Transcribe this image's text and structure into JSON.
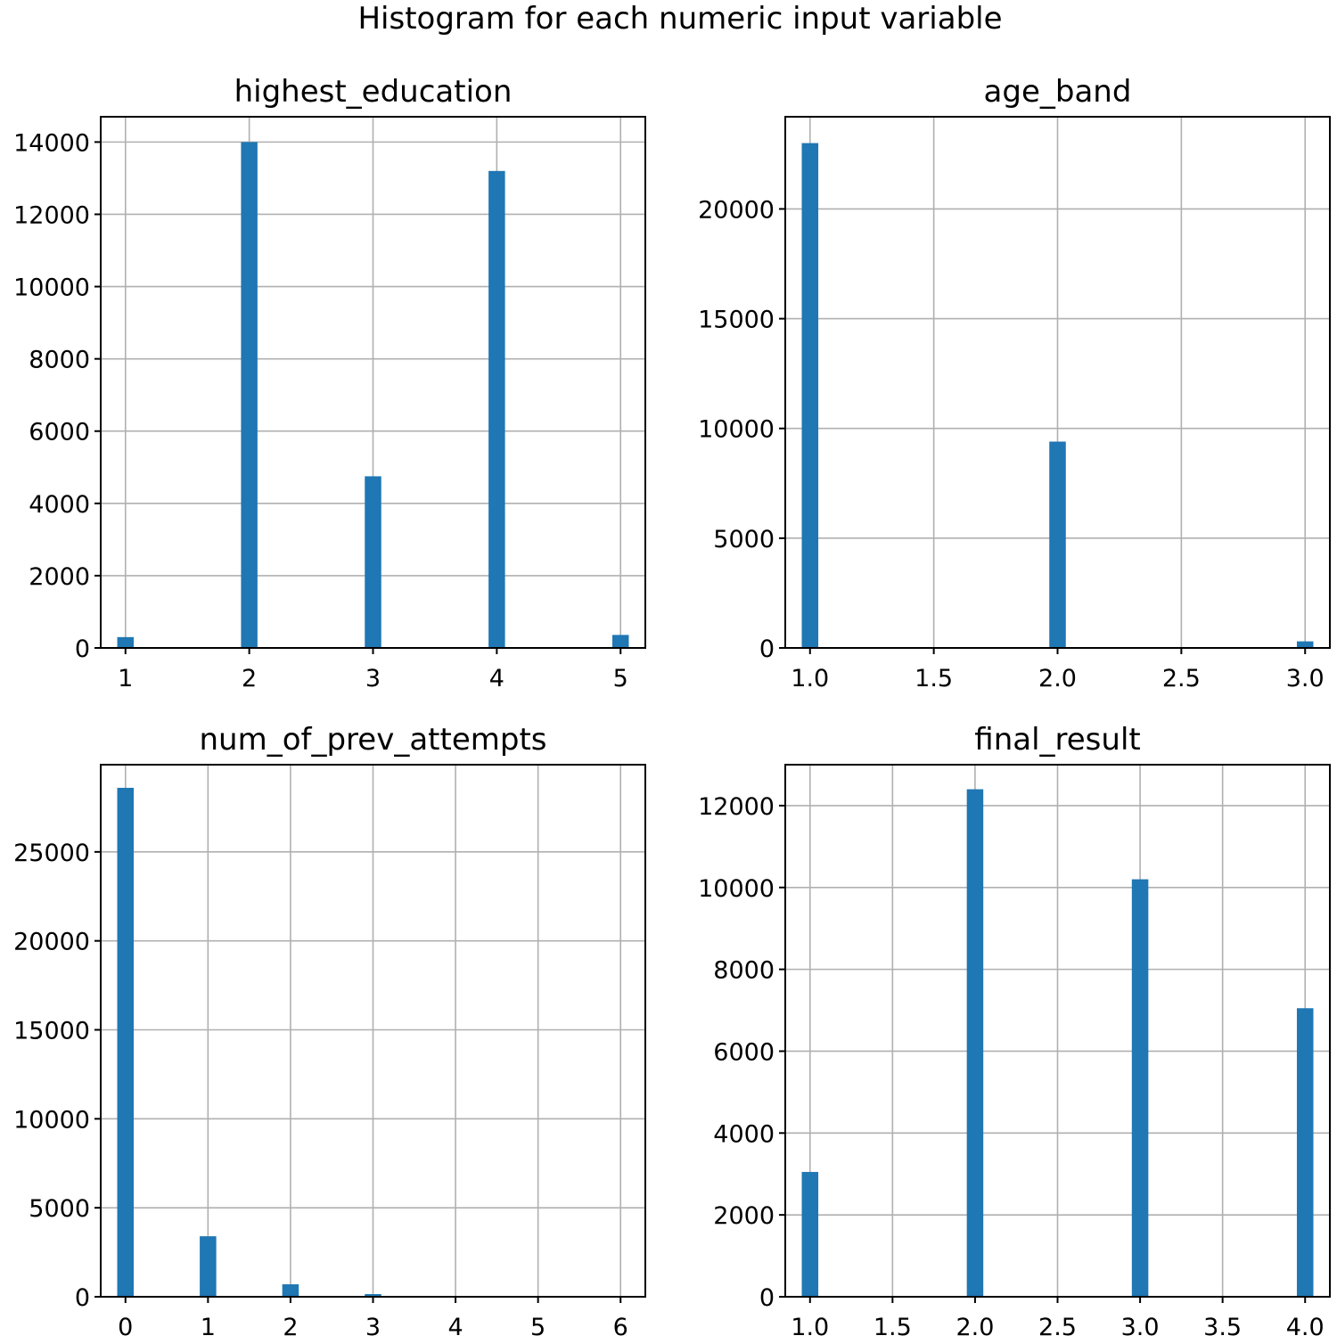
{
  "figure_title": "Histogram for each numeric input variable",
  "colors": {
    "bar": "#1f77b4",
    "grid": "#b0b0b0",
    "frame": "#000000"
  },
  "chart_data": [
    {
      "type": "bar",
      "title": "highest_education",
      "xlabel": "",
      "ylabel": "",
      "xlim": [
        0.8,
        5.2
      ],
      "ylim": [
        0,
        14700
      ],
      "grid": true,
      "bin_width": 0.133,
      "x_ticks": [
        1,
        2,
        3,
        4,
        5
      ],
      "x_tick_labels": [
        "1",
        "2",
        "3",
        "4",
        "5"
      ],
      "y_ticks": [
        0,
        2000,
        4000,
        6000,
        8000,
        10000,
        12000,
        14000
      ],
      "y_tick_labels": [
        "0",
        "2000",
        "4000",
        "6000",
        "8000",
        "10000",
        "12000",
        "14000"
      ],
      "x": [
        1,
        2,
        3,
        4,
        5
      ],
      "values": [
        300,
        14000,
        4750,
        13200,
        360
      ]
    },
    {
      "type": "bar",
      "title": "age_band",
      "xlabel": "",
      "ylabel": "",
      "xlim": [
        0.9,
        3.1
      ],
      "ylim": [
        0,
        24200
      ],
      "grid": true,
      "bin_width": 0.0667,
      "x_ticks": [
        1.0,
        1.5,
        2.0,
        2.5,
        3.0
      ],
      "x_tick_labels": [
        "1.0",
        "1.5",
        "2.0",
        "2.5",
        "3.0"
      ],
      "y_ticks": [
        0,
        5000,
        10000,
        15000,
        20000
      ],
      "y_tick_labels": [
        "0",
        "5000",
        "10000",
        "15000",
        "20000"
      ],
      "x": [
        1.0,
        2.0,
        3.0
      ],
      "values": [
        23000,
        9400,
        300
      ]
    },
    {
      "type": "bar",
      "title": "num_of_prev_attempts",
      "xlabel": "",
      "ylabel": "",
      "xlim": [
        -0.3,
        6.3
      ],
      "ylim": [
        0,
        29900
      ],
      "grid": true,
      "bin_width": 0.2,
      "x_ticks": [
        0,
        1,
        2,
        3,
        4,
        5,
        6
      ],
      "x_tick_labels": [
        "0",
        "1",
        "2",
        "3",
        "4",
        "5",
        "6"
      ],
      "y_ticks": [
        0,
        5000,
        10000,
        15000,
        20000,
        25000
      ],
      "y_tick_labels": [
        "0",
        "5000",
        "10000",
        "15000",
        "20000",
        "25000"
      ],
      "x": [
        0,
        1,
        2,
        3,
        4,
        5,
        6
      ],
      "values": [
        28600,
        3400,
        700,
        150,
        40,
        15,
        10
      ]
    },
    {
      "type": "bar",
      "title": "final_result",
      "xlabel": "",
      "ylabel": "",
      "xlim": [
        0.85,
        4.15
      ],
      "ylim": [
        0,
        13000
      ],
      "grid": true,
      "bin_width": 0.1,
      "x_ticks": [
        1.0,
        1.5,
        2.0,
        2.5,
        3.0,
        3.5,
        4.0
      ],
      "x_tick_labels": [
        "1.0",
        "1.5",
        "2.0",
        "2.5",
        "3.0",
        "3.5",
        "4.0"
      ],
      "y_ticks": [
        0,
        2000,
        4000,
        6000,
        8000,
        10000,
        12000
      ],
      "y_tick_labels": [
        "0",
        "2000",
        "4000",
        "6000",
        "8000",
        "10000",
        "12000"
      ],
      "x": [
        1.0,
        2.0,
        3.0,
        4.0
      ],
      "values": [
        3050,
        12400,
        10200,
        7050
      ]
    }
  ]
}
